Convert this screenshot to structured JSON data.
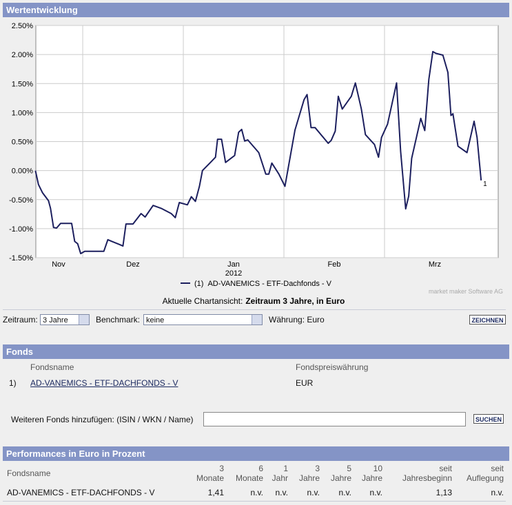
{
  "header": {
    "title": "Wertentwicklung"
  },
  "chart_data": {
    "type": "line",
    "x": [
      11.53,
      11.56,
      11.6,
      11.66,
      11.68,
      11.71,
      11.74,
      11.78,
      11.83,
      11.89,
      11.92,
      11.95,
      11.98,
      12.02,
      12.07,
      12.14,
      12.21,
      12.25,
      12.29,
      12.36,
      12.4,
      12.43,
      12.5,
      12.58,
      12.62,
      12.7,
      12.78,
      12.88,
      12.92,
      12.96,
      13.04,
      13.08,
      13.12,
      13.16,
      13.19,
      13.27,
      13.32,
      13.34,
      13.38,
      13.42,
      13.51,
      13.55,
      13.58,
      13.61,
      13.64,
      13.75,
      13.82,
      13.85,
      13.88,
      13.95,
      14.01,
      14.11,
      14.2,
      14.23,
      14.27,
      14.31,
      14.44,
      14.47,
      14.51,
      14.54,
      14.58,
      14.67,
      14.71,
      14.77,
      14.81,
      14.9,
      14.94,
      14.97,
      15.03,
      15.12,
      15.16,
      15.21,
      15.24,
      15.27,
      15.36,
      15.4,
      15.44,
      15.48,
      15.51,
      15.58,
      15.63,
      15.66,
      15.68,
      15.73,
      15.82,
      15.89,
      15.92,
      15.96
    ],
    "series": [
      {
        "name": "AD-VANEMICS - ETF-Dachfonds - V",
        "color": "#1c1f5e",
        "values": [
          0.0,
          -0.24,
          -0.38,
          -0.52,
          -0.65,
          -0.98,
          -0.99,
          -0.91,
          -0.91,
          -0.91,
          -1.22,
          -1.26,
          -1.43,
          -1.39,
          -1.39,
          -1.39,
          -1.39,
          -1.19,
          -1.22,
          -1.27,
          -1.3,
          -0.92,
          -0.92,
          -0.74,
          -0.8,
          -0.6,
          -0.65,
          -0.74,
          -0.81,
          -0.55,
          -0.59,
          -0.45,
          -0.53,
          -0.27,
          0.0,
          0.14,
          0.23,
          0.54,
          0.54,
          0.14,
          0.26,
          0.66,
          0.71,
          0.51,
          0.53,
          0.31,
          -0.06,
          -0.06,
          0.13,
          -0.06,
          -0.27,
          0.7,
          1.22,
          1.31,
          0.74,
          0.74,
          0.47,
          0.52,
          0.68,
          1.28,
          1.06,
          1.28,
          1.51,
          1.06,
          0.62,
          0.45,
          0.23,
          0.57,
          0.8,
          1.51,
          0.33,
          -0.66,
          -0.44,
          0.21,
          0.9,
          0.69,
          1.57,
          2.05,
          2.02,
          1.99,
          1.69,
          0.95,
          0.98,
          0.42,
          0.31,
          0.85,
          0.57,
          -0.17
        ]
      }
    ],
    "ylim": [
      -1.5,
      2.5
    ],
    "yticks": [
      {
        "value": -1.5,
        "label": "-1.50%"
      },
      {
        "value": -1.0,
        "label": "-1.00%"
      },
      {
        "value": -0.5,
        "label": "-0.50%"
      },
      {
        "value": 0,
        "label": "0.00%"
      },
      {
        "value": 0.5,
        "label": "0.50%"
      },
      {
        "value": 1.0,
        "label": "1.00%"
      },
      {
        "value": 1.5,
        "label": "1.50%"
      },
      {
        "value": 2.0,
        "label": "2.00%"
      },
      {
        "value": 2.5,
        "label": "2.50%"
      }
    ],
    "xlim": [
      11.534,
      16.13
    ],
    "xticks": [
      {
        "value": 11.76,
        "label": "Nov"
      },
      {
        "value": 12.5,
        "label": "Dez"
      },
      {
        "value": 13.5,
        "label": "Jan",
        "sublabel": "2012"
      },
      {
        "value": 14.5,
        "label": "Feb"
      },
      {
        "value": 15.5,
        "label": "Mrz"
      }
    ],
    "xgrid": [
      12,
      13,
      14,
      15
    ],
    "grid": true,
    "end_label": "1",
    "legend_prefix": "(1)",
    "caption_prefix": "Aktuelle Chartansicht:",
    "caption_main": "Zeitraum 3 Jahre, in Euro",
    "credit": "market maker Software AG"
  },
  "controls": {
    "zeitraum_label": "Zeitraum:",
    "zeitraum_value": "3 Jahre",
    "benchmark_label": "Benchmark:",
    "benchmark_value": "keine",
    "waehrung": "Währung: Euro",
    "button": "ZEICHNEN"
  },
  "fonds": {
    "title": "Fonds",
    "columns": [
      "Fondsname",
      "Fondspreiswährung"
    ],
    "rows": [
      [
        "1)",
        "AD-VANEMICS - ETF-DACHFONDS - V",
        "EUR"
      ]
    ],
    "add_label": "Weiteren Fonds hinzufügen: (ISIN / WKN / Name)",
    "button": "SUCHEN"
  },
  "performance": {
    "title": "Performances in Euro in Prozent",
    "name_column": "Fondsname",
    "columns": [
      [
        "3",
        "Monate"
      ],
      [
        "6",
        "Monate"
      ],
      [
        "1",
        "Jahr"
      ],
      [
        "3",
        "Jahre"
      ],
      [
        "5",
        "Jahre"
      ],
      [
        "10",
        "Jahre"
      ],
      [
        "seit",
        "Jahresbeginn"
      ],
      [
        "seit",
        "Auflegung"
      ]
    ],
    "rows": [
      [
        "AD-VANEMICS - ETF-DACHFONDS - V",
        "1,41",
        "n.v.",
        "n.v.",
        "n.v.",
        "n.v.",
        "n.v.",
        "1,13",
        "n.v."
      ]
    ]
  }
}
